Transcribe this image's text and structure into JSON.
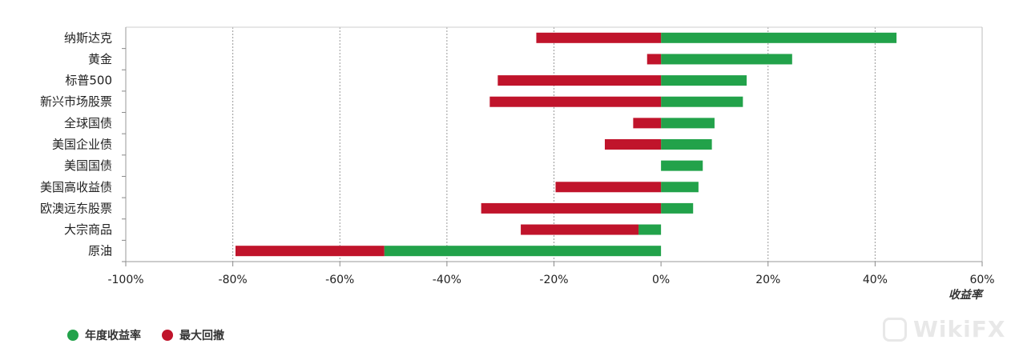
{
  "chart_data": {
    "type": "bar",
    "orientation": "horizontal",
    "categories": [
      "纳斯达克",
      "黄金",
      "标普500",
      "新兴市场股票",
      "全球国债",
      "美国企业债",
      "美国国债",
      "美国高收益债",
      "欧澳远东股票",
      "大宗商品",
      "原油"
    ],
    "series": [
      {
        "name": "年度收益率",
        "color": "#22a24a",
        "values": [
          44,
          24.5,
          16,
          15.3,
          10,
          9.5,
          7.8,
          7,
          6,
          -4.2,
          -51.7
        ]
      },
      {
        "name": "最大回撤",
        "color": "#c0142b",
        "values": [
          -23.3,
          -2.6,
          -30.5,
          -32,
          -5.2,
          -10.5,
          0,
          -19.7,
          -33.6,
          -26.2,
          -79.5
        ]
      }
    ],
    "xlim": [
      -100,
      60
    ],
    "xticks": [
      "-100%",
      "-80%",
      "-60%",
      "-40%",
      "-20%",
      "0%",
      "20%",
      "40%",
      "60%"
    ],
    "xlabel": "收益率",
    "ylabel": "",
    "title": "",
    "grid": true,
    "legend": "bottom-left"
  },
  "watermark": {
    "text": "WikiFX"
  }
}
